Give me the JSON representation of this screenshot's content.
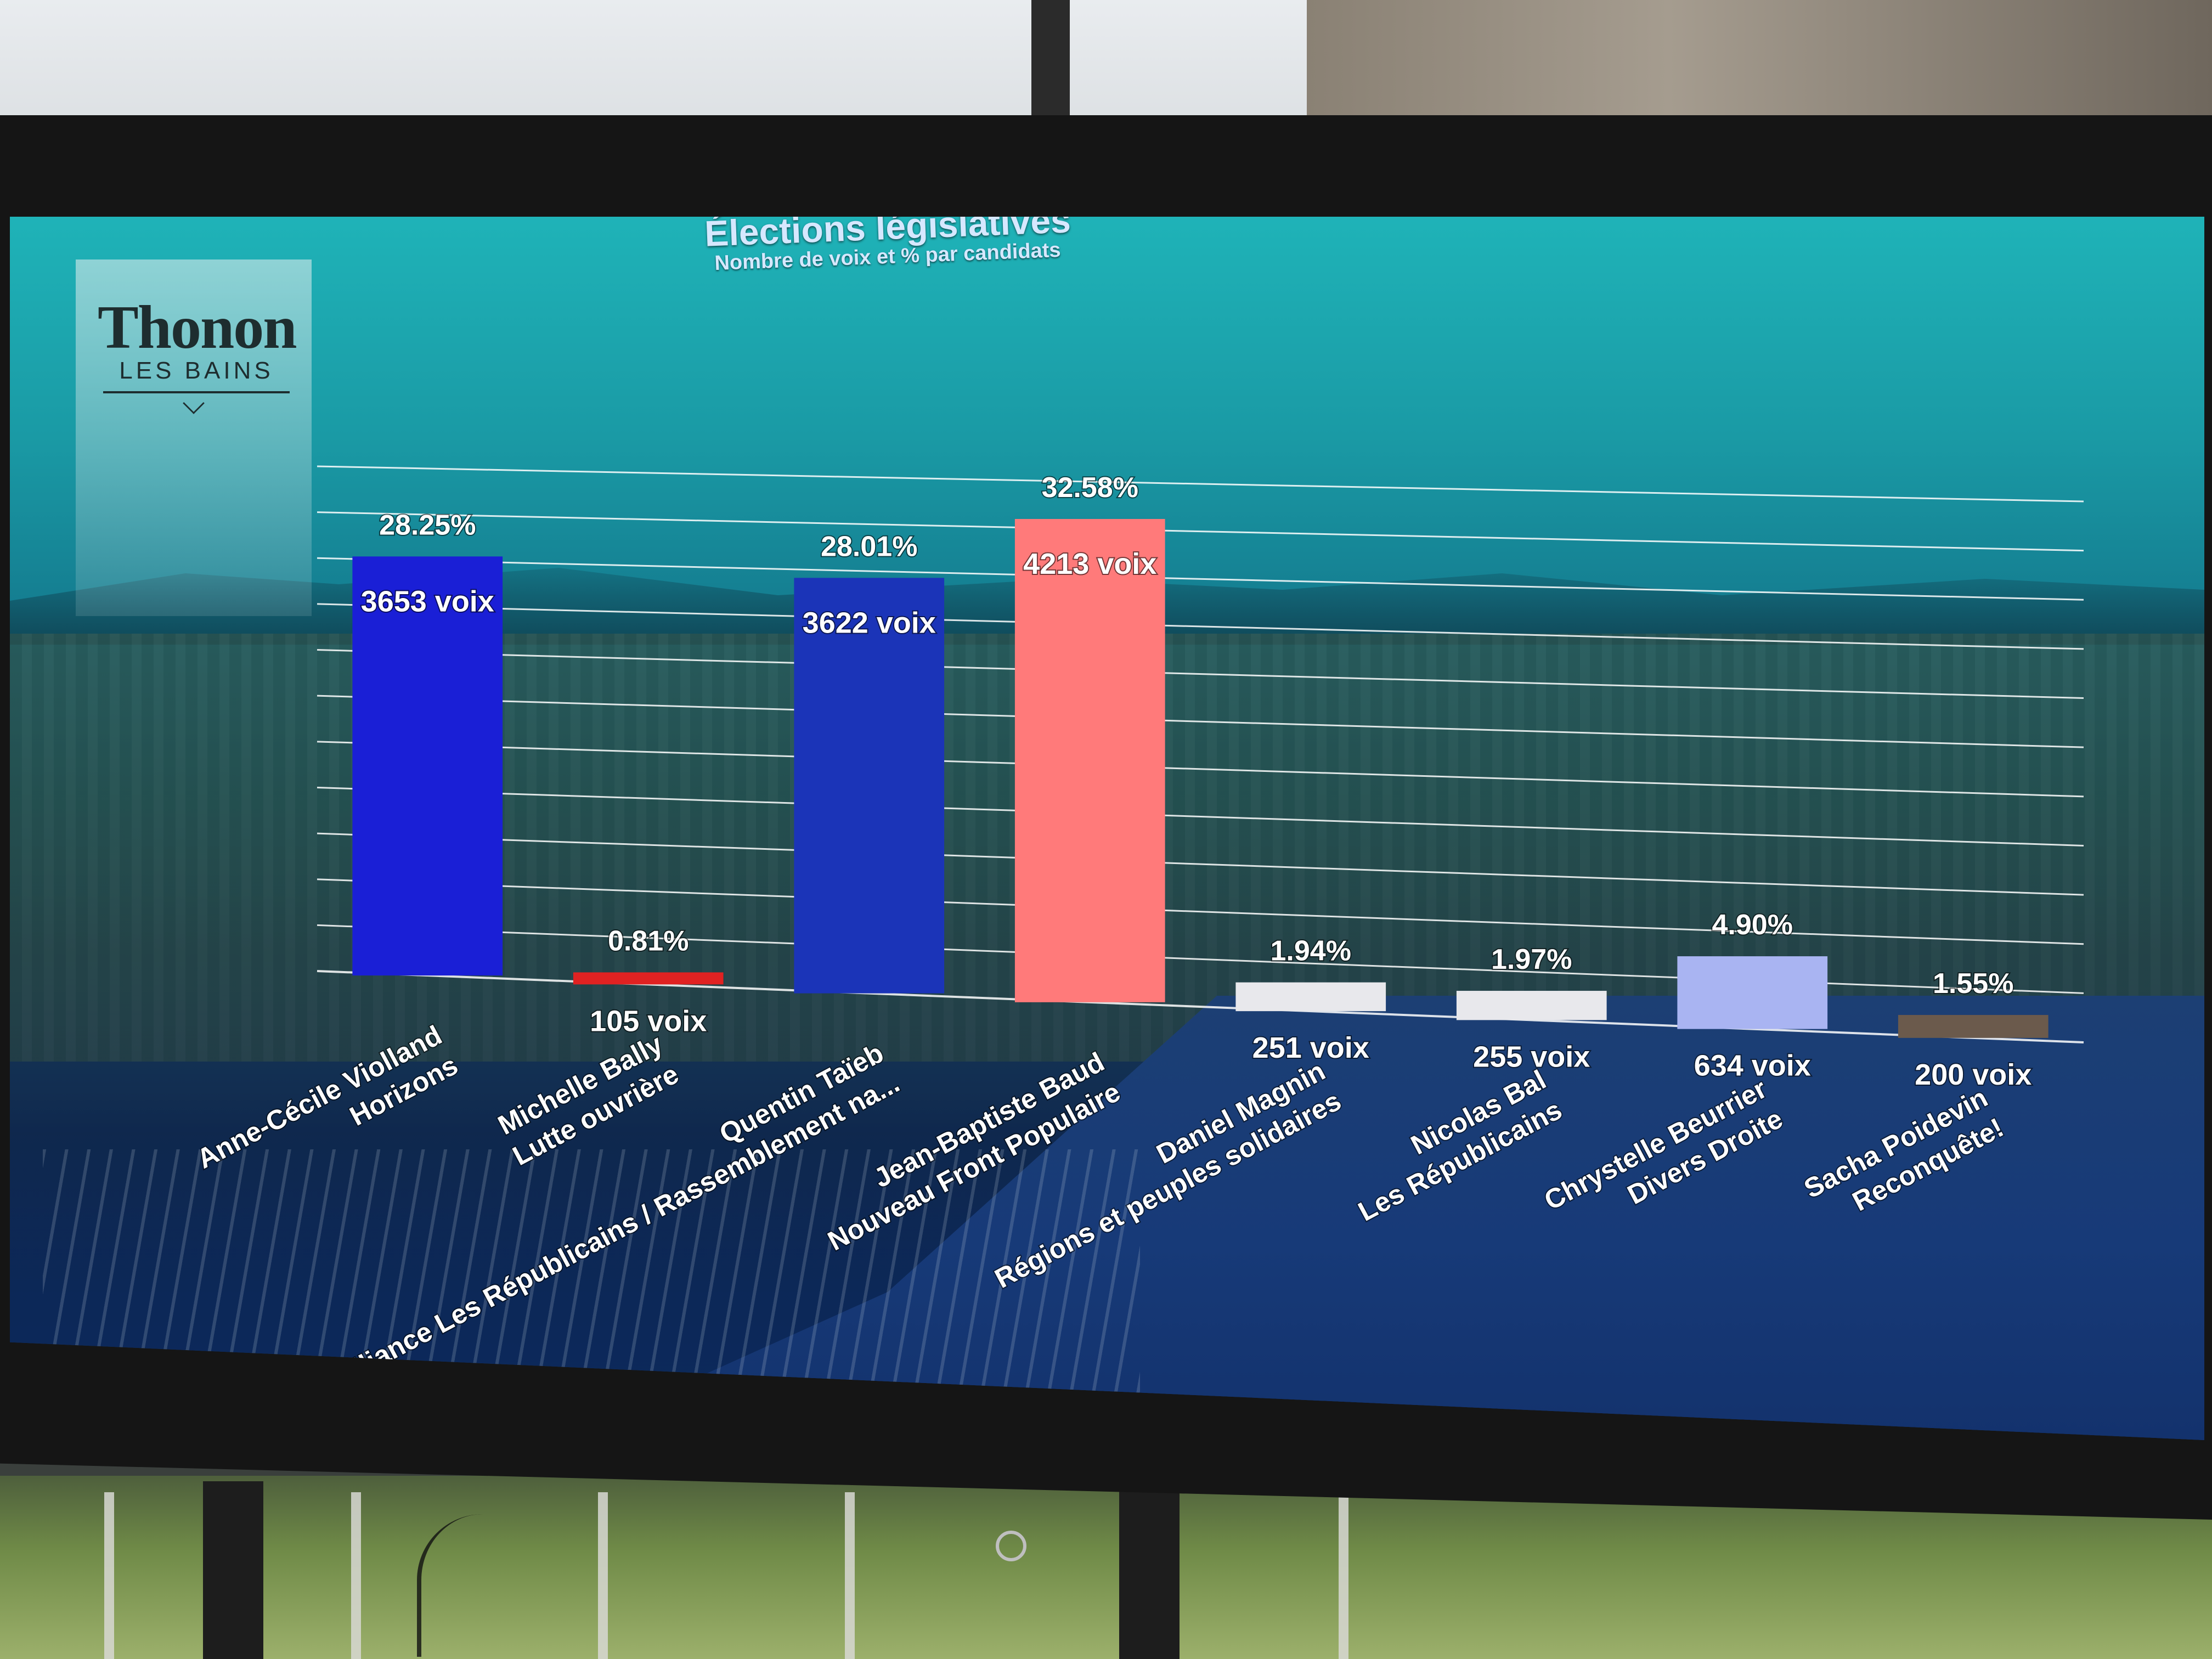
{
  "logo": {
    "main": "Thonon",
    "sub": "LES BAINS"
  },
  "chart_data": {
    "type": "bar",
    "title": "Élections législatives",
    "subtitle": "Nombre de voix et % par candidats",
    "categories": [
      [
        "Anne-Cécile Violland",
        "Horizons"
      ],
      [
        "Michelle Bally",
        "Lutte ouvrière"
      ],
      [
        "Quentin Taïeb",
        "Alliance Les Républicains / Rassemblement na..."
      ],
      [
        "Jean-Baptiste Baud",
        "Nouveau Front Populaire"
      ],
      [
        "Daniel Magnin",
        "Régions et peuples solidaires"
      ],
      [
        "Nicolas Bal",
        "Les Républicains"
      ],
      [
        "Chrystelle Beurrier",
        "Divers Droite"
      ],
      [
        "Sacha Poidevin",
        "Reconquête!"
      ]
    ],
    "values": [
      3653,
      105,
      3622,
      4213,
      251,
      255,
      634,
      200
    ],
    "value_labels": [
      "3653 voix",
      "105 voix",
      "3622 voix",
      "4213 voix",
      "251 voix",
      "255 voix",
      "634 voix",
      "200 voix"
    ],
    "percent_labels": [
      "28.25%",
      "0.81%",
      "28.01%",
      "32.58%",
      "1.94%",
      "1.97%",
      "4.90%",
      "1.55%"
    ],
    "bar_colors": [
      "#1a1fd6",
      "#e02222",
      "#1b34b8",
      "#ff7a7a",
      "#e8e8ec",
      "#e8e8ec",
      "#a9b4f2",
      "#6b5a4c"
    ],
    "ylim": [
      0,
      4400
    ],
    "grid": true,
    "legend": "none"
  }
}
